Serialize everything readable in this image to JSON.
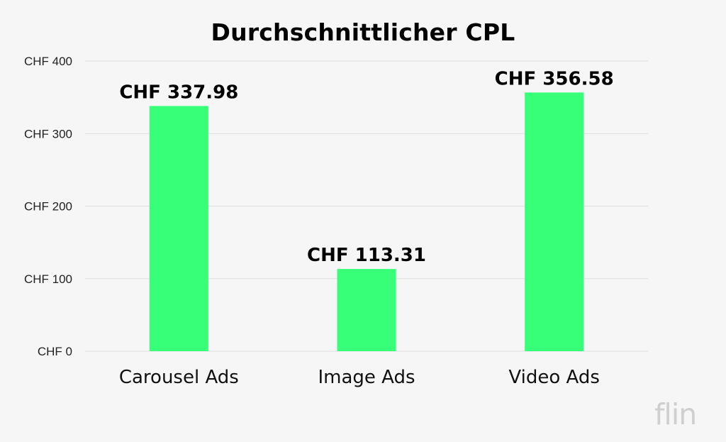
{
  "chart_data": {
    "type": "bar",
    "title": "Durchschnittlicher CPL",
    "categories": [
      "Carousel Ads",
      "Image Ads",
      "Video Ads"
    ],
    "values": [
      337.98,
      113.31,
      356.58
    ],
    "data_labels": [
      "CHF 337.98",
      "CHF 113.31",
      "CHF 356.58"
    ],
    "yticks": [
      0,
      100,
      200,
      300,
      400
    ],
    "ytick_labels": [
      "CHF 0",
      "CHF 100",
      "CHF 200",
      "CHF 300",
      "CHF 400"
    ],
    "ylim": [
      0,
      400
    ],
    "xlabel": "",
    "ylabel": "",
    "grid": true,
    "legend": "none",
    "bar_color": "#38ff78",
    "grid_color": "#dddddd"
  },
  "brand": {
    "logo_text": "flin",
    "logo_color": "#cfcfcf"
  }
}
